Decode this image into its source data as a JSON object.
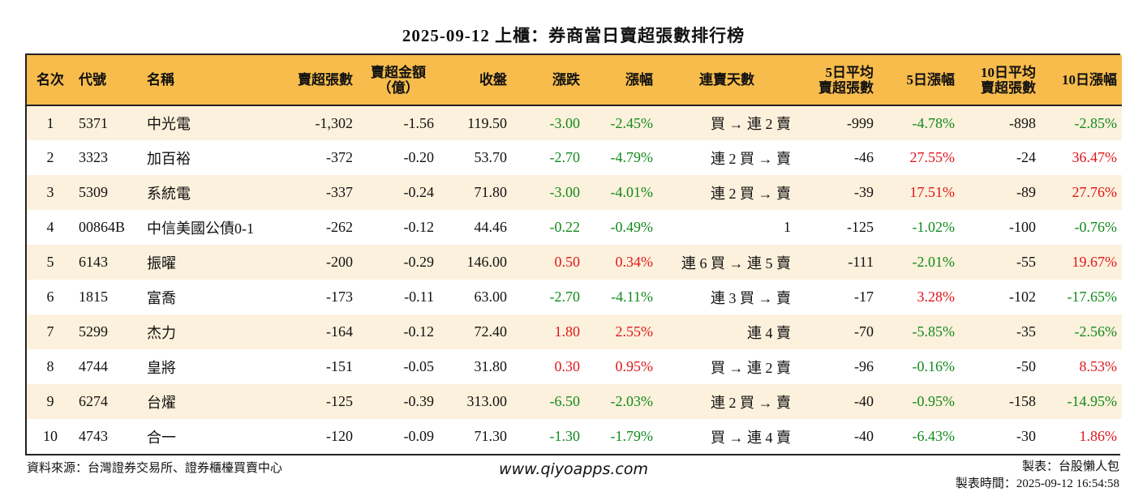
{
  "title": "2025-09-12 上櫃：券商當日賣超張數排行榜",
  "headers": {
    "rank": "名次",
    "code": "代號",
    "name": "名稱",
    "net_sell_lots": "賣超張數",
    "net_sell_amount_l1": "賣超金額",
    "net_sell_amount_l2": "（億）",
    "close": "收盤",
    "change": "漲跌",
    "change_pct": "漲幅",
    "streak": "連賣天數",
    "avg5_l1": "5日平均",
    "avg5_l2": "賣超張數",
    "pct5": "5日漲幅",
    "avg10_l1": "10日平均",
    "avg10_l2": "賣超張數",
    "pct10": "10日漲幅"
  },
  "rows": [
    {
      "rank": "1",
      "code": "5371",
      "name": "中光電",
      "lots": "-1,302",
      "amount": "-1.56",
      "close": "119.50",
      "change": "-3.00",
      "change_pct": "-2.45%",
      "streak": "買 → 連 2 賣",
      "avg5": "-999",
      "pct5": "-4.78%",
      "avg10": "-898",
      "pct10": "-2.85%"
    },
    {
      "rank": "2",
      "code": "3323",
      "name": "加百裕",
      "lots": "-372",
      "amount": "-0.20",
      "close": "53.70",
      "change": "-2.70",
      "change_pct": "-4.79%",
      "streak": "連 2 買 → 賣",
      "avg5": "-46",
      "pct5": "27.55%",
      "avg10": "-24",
      "pct10": "36.47%"
    },
    {
      "rank": "3",
      "code": "5309",
      "name": "系統電",
      "lots": "-337",
      "amount": "-0.24",
      "close": "71.80",
      "change": "-3.00",
      "change_pct": "-4.01%",
      "streak": "連 2 買 → 賣",
      "avg5": "-39",
      "pct5": "17.51%",
      "avg10": "-89",
      "pct10": "27.76%"
    },
    {
      "rank": "4",
      "code": "00864B",
      "name": "中信美國公債0-1",
      "lots": "-262",
      "amount": "-0.12",
      "close": "44.46",
      "change": "-0.22",
      "change_pct": "-0.49%",
      "streak": "1",
      "avg5": "-125",
      "pct5": "-1.02%",
      "avg10": "-100",
      "pct10": "-0.76%"
    },
    {
      "rank": "5",
      "code": "6143",
      "name": "振曜",
      "lots": "-200",
      "amount": "-0.29",
      "close": "146.00",
      "change": "0.50",
      "change_pct": "0.34%",
      "streak": "連 6 買 → 連 5 賣",
      "avg5": "-111",
      "pct5": "-2.01%",
      "avg10": "-55",
      "pct10": "19.67%"
    },
    {
      "rank": "6",
      "code": "1815",
      "name": "富喬",
      "lots": "-173",
      "amount": "-0.11",
      "close": "63.00",
      "change": "-2.70",
      "change_pct": "-4.11%",
      "streak": "連 3 買 → 賣",
      "avg5": "-17",
      "pct5": "3.28%",
      "avg10": "-102",
      "pct10": "-17.65%"
    },
    {
      "rank": "7",
      "code": "5299",
      "name": "杰力",
      "lots": "-164",
      "amount": "-0.12",
      "close": "72.40",
      "change": "1.80",
      "change_pct": "2.55%",
      "streak": "連 4 賣",
      "avg5": "-70",
      "pct5": "-5.85%",
      "avg10": "-35",
      "pct10": "-2.56%"
    },
    {
      "rank": "8",
      "code": "4744",
      "name": "皇將",
      "lots": "-151",
      "amount": "-0.05",
      "close": "31.80",
      "change": "0.30",
      "change_pct": "0.95%",
      "streak": "買 → 連 2 賣",
      "avg5": "-96",
      "pct5": "-0.16%",
      "avg10": "-50",
      "pct10": "8.53%"
    },
    {
      "rank": "9",
      "code": "6274",
      "name": "台燿",
      "lots": "-125",
      "amount": "-0.39",
      "close": "313.00",
      "change": "-6.50",
      "change_pct": "-2.03%",
      "streak": "連 2 買 → 賣",
      "avg5": "-40",
      "pct5": "-0.95%",
      "avg10": "-158",
      "pct10": "-14.95%"
    },
    {
      "rank": "10",
      "code": "4743",
      "name": "合一",
      "lots": "-120",
      "amount": "-0.09",
      "close": "71.30",
      "change": "-1.30",
      "change_pct": "-1.79%",
      "streak": "買 → 連 4 賣",
      "avg5": "-40",
      "pct5": "-6.43%",
      "avg10": "-30",
      "pct10": "1.86%"
    }
  ],
  "footer": {
    "source": "資料來源：台灣證券交易所、證券櫃檯買賣中心",
    "website": "www.qiyoapps.com",
    "author": "製表：台股懶人包",
    "made_time": "製表時間：2025-09-12 16:54:58"
  },
  "colors": {
    "header_bg": "#f7bc4c",
    "row_alt_bg": "#fcf1dc",
    "positive": "#e0161c",
    "negative": "#128a1c"
  }
}
